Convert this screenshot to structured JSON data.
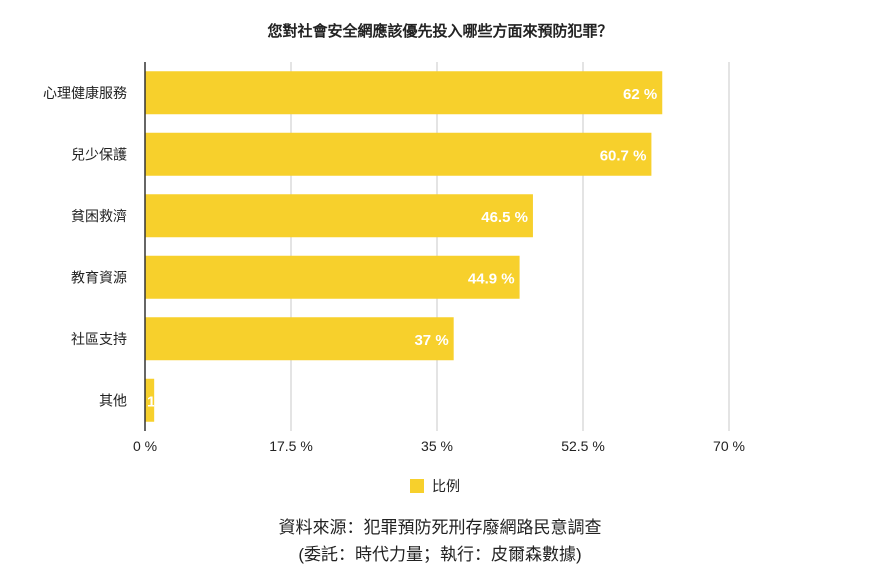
{
  "chart_data": {
    "type": "bar",
    "orientation": "horizontal",
    "title": "您對社會安全網應該優先投入哪些方面來預防犯罪？",
    "categories": [
      "心理健康服務",
      "兒少保護",
      "貧困救濟",
      "教育資源",
      "社區支持",
      "其他"
    ],
    "series": [
      {
        "name": "比例",
        "values": [
          62,
          60.7,
          46.5,
          44.9,
          37,
          1.1
        ],
        "labels": [
          "62 %",
          "60.7 %",
          "46.5 %",
          "44.9 %",
          "37 %",
          "1.1 %"
        ],
        "color": "#f7d02c"
      }
    ],
    "xlim": [
      0,
      70
    ],
    "xticks": [
      0,
      17.5,
      35,
      52.5,
      70
    ],
    "xtick_labels": [
      "0 %",
      "17.5 %",
      "35 %",
      "52.5 %",
      "70 %"
    ],
    "grid": true,
    "legend": "bottom"
  },
  "source": {
    "line1": "資料來源：犯罪預防死刑存廢網路民意調查",
    "line2": "(委託：時代力量；執行：皮爾森數據)"
  }
}
